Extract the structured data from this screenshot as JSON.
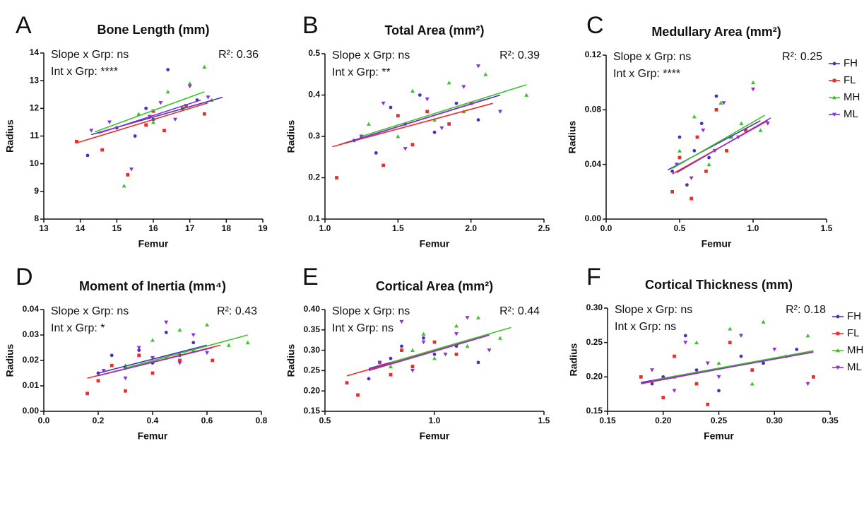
{
  "groups": [
    {
      "name": "FH",
      "color": "#4b2fbd",
      "marker": "circle"
    },
    {
      "name": "FL",
      "color": "#e8302b",
      "marker": "square"
    },
    {
      "name": "MH",
      "color": "#3cc42c",
      "marker": "triangle-up"
    },
    {
      "name": "ML",
      "color": "#8b2fd6",
      "marker": "triangle-down"
    }
  ],
  "chart_data": [
    {
      "type": "scatter",
      "panel": "A",
      "title": "Bone Length (mm)",
      "x_label": "Femur",
      "y_label": "Radius",
      "annotations": [
        "Slope x Grp: ns",
        "Int x Grp: ****",
        "R²: 0.36"
      ],
      "legend": false,
      "xlim": [
        13,
        19
      ],
      "xticks": [
        13,
        14,
        15,
        16,
        17,
        18,
        19
      ],
      "ylim": [
        8,
        14
      ],
      "yticks": [
        8,
        9,
        10,
        11,
        12,
        13,
        14
      ],
      "series": [
        {
          "x": [
            14.2,
            15.0,
            15.5,
            15.8,
            16.0,
            16.4,
            16.8,
            17.2
          ],
          "y": [
            10.3,
            11.3,
            11.0,
            12.0,
            11.6,
            13.4,
            12.0,
            12.3
          ],
          "fit_x": [
            14.3,
            17.9
          ],
          "fit_y": [
            11.05,
            12.4
          ]
        },
        {
          "x": [
            13.9,
            14.6,
            15.3,
            15.8,
            16.0,
            16.3,
            16.9,
            17.4
          ],
          "y": [
            10.8,
            10.5,
            9.6,
            11.4,
            11.9,
            11.2,
            12.1,
            11.8
          ],
          "fit_x": [
            13.9,
            17.5
          ],
          "fit_y": [
            10.75,
            12.2
          ]
        },
        {
          "x": [
            15.2,
            15.6,
            16.0,
            16.4,
            16.8,
            17.0,
            17.4,
            17.6
          ],
          "y": [
            9.2,
            11.8,
            11.5,
            12.6,
            12.0,
            12.9,
            13.5,
            12.3
          ],
          "fit_x": [
            14.4,
            17.4
          ],
          "fit_y": [
            11.15,
            12.6
          ]
        },
        {
          "x": [
            14.3,
            14.8,
            15.4,
            15.9,
            16.2,
            16.6,
            17.0,
            17.5
          ],
          "y": [
            11.2,
            11.5,
            9.8,
            11.7,
            12.2,
            11.6,
            12.8,
            12.4
          ],
          "fit_x": [
            14.5,
            17.3
          ],
          "fit_y": [
            11.1,
            12.3
          ]
        }
      ]
    },
    {
      "type": "scatter",
      "panel": "B",
      "title": "Total Area (mm²)",
      "x_label": "Femur",
      "y_label": "Radius",
      "annotations": [
        "Slope x Grp: ns",
        "Int x Grp: **",
        "R²: 0.39"
      ],
      "legend": false,
      "xlim": [
        1,
        2.5
      ],
      "xticks": [
        {
          "value": 1,
          "label": "1.0"
        },
        1.5,
        {
          "value": 2,
          "label": "2.0"
        },
        2.5
      ],
      "ylim": [
        0.1,
        0.5
      ],
      "yticks": [
        0.1,
        0.2,
        0.3,
        0.4,
        0.5
      ],
      "series": [
        {
          "x": [
            1.2,
            1.35,
            1.45,
            1.55,
            1.65,
            1.75,
            1.9,
            2.05
          ],
          "y": [
            0.29,
            0.26,
            0.37,
            0.33,
            0.4,
            0.31,
            0.38,
            0.34
          ],
          "fit_x": [
            1.1,
            2.2
          ],
          "fit_y": [
            0.28,
            0.4
          ]
        },
        {
          "x": [
            1.08,
            1.25,
            1.4,
            1.5,
            1.6,
            1.7,
            1.85,
            2.0
          ],
          "y": [
            0.2,
            0.3,
            0.23,
            0.35,
            0.28,
            0.36,
            0.33,
            0.38
          ],
          "fit_x": [
            1.05,
            2.15
          ],
          "fit_y": [
            0.275,
            0.38
          ]
        },
        {
          "x": [
            1.3,
            1.5,
            1.6,
            1.75,
            1.85,
            1.95,
            2.1,
            2.38
          ],
          "y": [
            0.33,
            0.3,
            0.41,
            0.34,
            0.43,
            0.36,
            0.45,
            0.4
          ],
          "fit_x": [
            1.25,
            2.38
          ],
          "fit_y": [
            0.3,
            0.425
          ]
        },
        {
          "x": [
            1.25,
            1.4,
            1.55,
            1.7,
            1.8,
            1.95,
            2.05,
            2.2
          ],
          "y": [
            0.3,
            0.38,
            0.27,
            0.39,
            0.32,
            0.42,
            0.47,
            0.36
          ],
          "fit_x": [
            1.2,
            2.1
          ],
          "fit_y": [
            0.29,
            0.39
          ]
        }
      ]
    },
    {
      "type": "scatter",
      "panel": "C",
      "title": "Medullary Area (mm²)",
      "x_label": "Femur",
      "y_label": "Radius",
      "annotations": [
        "Slope x Grp: ns",
        "Int x Grp: ****",
        "R²: 0.25"
      ],
      "legend": true,
      "xlim": [
        0,
        1.5
      ],
      "xticks": [
        {
          "value": 0,
          "label": "0.0"
        },
        0.5,
        {
          "value": 1,
          "label": "1.0"
        },
        1.5
      ],
      "ylim": [
        0,
        0.12
      ],
      "yticks": [
        {
          "value": 0,
          "label": "0.00"
        },
        0.04,
        0.08,
        0.12
      ],
      "series": [
        {
          "x": [
            0.45,
            0.5,
            0.55,
            0.6,
            0.65,
            0.7,
            0.75,
            0.85
          ],
          "y": [
            0.035,
            0.06,
            0.025,
            0.05,
            0.07,
            0.045,
            0.09,
            0.06
          ],
          "fit_x": [
            0.42,
            1.05
          ],
          "fit_y": [
            0.036,
            0.072
          ]
        },
        {
          "x": [
            0.45,
            0.5,
            0.58,
            0.62,
            0.68,
            0.75,
            0.82,
            0.95
          ],
          "y": [
            0.02,
            0.045,
            0.015,
            0.06,
            0.035,
            0.08,
            0.05,
            0.065
          ],
          "fit_x": [
            0.45,
            1.1
          ],
          "fit_y": [
            0.033,
            0.072
          ]
        },
        {
          "x": [
            0.5,
            0.6,
            0.7,
            0.78,
            0.85,
            0.92,
            1.0,
            1.05
          ],
          "y": [
            0.05,
            0.075,
            0.04,
            0.085,
            0.06,
            0.07,
            0.1,
            0.065
          ],
          "fit_x": [
            0.45,
            1.08
          ],
          "fit_y": [
            0.037,
            0.076
          ]
        },
        {
          "x": [
            0.48,
            0.58,
            0.66,
            0.74,
            0.8,
            0.9,
            1.0,
            1.1
          ],
          "y": [
            0.04,
            0.03,
            0.065,
            0.05,
            0.085,
            0.06,
            0.095,
            0.07
          ],
          "fit_x": [
            0.48,
            1.12
          ],
          "fit_y": [
            0.034,
            0.074
          ]
        }
      ]
    },
    {
      "type": "scatter",
      "panel": "D",
      "title": "Moment of Inertia (mm⁴)",
      "x_label": "Femur",
      "y_label": "Radius",
      "annotations": [
        "Slope x Grp: ns",
        "Int x Grp: *",
        "R²: 0.43"
      ],
      "legend": false,
      "xlim": [
        0,
        0.8
      ],
      "xticks": [
        {
          "value": 0,
          "label": "0.0"
        },
        0.2,
        0.4,
        0.6,
        0.8
      ],
      "ylim": [
        0,
        0.04
      ],
      "yticks": [
        {
          "value": 0,
          "label": "0.00"
        },
        0.01,
        0.02,
        0.03,
        0.04
      ],
      "series": [
        {
          "x": [
            0.2,
            0.25,
            0.3,
            0.35,
            0.4,
            0.45,
            0.5,
            0.55
          ],
          "y": [
            0.015,
            0.022,
            0.017,
            0.024,
            0.019,
            0.031,
            0.022,
            0.027
          ],
          "fit_x": [
            0.2,
            0.6
          ],
          "fit_y": [
            0.015,
            0.026
          ]
        },
        {
          "x": [
            0.16,
            0.2,
            0.25,
            0.3,
            0.35,
            0.4,
            0.5,
            0.62
          ],
          "y": [
            0.007,
            0.012,
            0.018,
            0.008,
            0.022,
            0.015,
            0.02,
            0.02
          ],
          "fit_x": [
            0.16,
            0.65
          ],
          "fit_y": [
            0.013,
            0.026
          ]
        },
        {
          "x": [
            0.3,
            0.4,
            0.45,
            0.5,
            0.55,
            0.6,
            0.68,
            0.75
          ],
          "y": [
            0.018,
            0.028,
            0.021,
            0.032,
            0.024,
            0.034,
            0.026,
            0.027
          ],
          "fit_x": [
            0.3,
            0.75
          ],
          "fit_y": [
            0.017,
            0.03
          ]
        },
        {
          "x": [
            0.22,
            0.3,
            0.35,
            0.4,
            0.45,
            0.5,
            0.55,
            0.6
          ],
          "y": [
            0.016,
            0.013,
            0.025,
            0.021,
            0.035,
            0.019,
            0.03,
            0.023
          ],
          "fit_x": [
            0.2,
            0.62
          ],
          "fit_y": [
            0.014,
            0.025
          ]
        }
      ]
    },
    {
      "type": "scatter",
      "panel": "E",
      "title": "Cortical Area (mm²)",
      "x_label": "Femur",
      "y_label": "Radius",
      "annotations": [
        "Slope x Grp: ns",
        "Int x Grp: ns",
        "R²: 0.44"
      ],
      "legend": false,
      "xlim": [
        0.5,
        1.5
      ],
      "xticks": [
        0.5,
        {
          "value": 1,
          "label": "1.0"
        },
        1.5
      ],
      "ylim": [
        0.15,
        0.4
      ],
      "yticks": [
        0.15,
        {
          "value": 0.2,
          "label": "0.20"
        },
        0.25,
        {
          "value": 0.3,
          "label": "0.30"
        },
        0.35,
        {
          "value": 0.4,
          "label": "0.40"
        }
      ],
      "series": [
        {
          "x": [
            0.7,
            0.8,
            0.85,
            0.9,
            0.95,
            1.0,
            1.1,
            1.2
          ],
          "y": [
            0.23,
            0.28,
            0.31,
            0.26,
            0.33,
            0.29,
            0.31,
            0.27
          ],
          "fit_x": [
            0.7,
            1.2
          ],
          "fit_y": [
            0.255,
            0.33
          ]
        },
        {
          "x": [
            0.6,
            0.65,
            0.75,
            0.8,
            0.85,
            0.9,
            1.0,
            1.1
          ],
          "y": [
            0.22,
            0.19,
            0.27,
            0.24,
            0.3,
            0.26,
            0.32,
            0.29
          ],
          "fit_x": [
            0.6,
            1.25
          ],
          "fit_y": [
            0.237,
            0.338
          ]
        },
        {
          "x": [
            0.8,
            0.9,
            0.95,
            1.0,
            1.1,
            1.15,
            1.2,
            1.3
          ],
          "y": [
            0.26,
            0.3,
            0.34,
            0.28,
            0.36,
            0.31,
            0.38,
            0.33
          ],
          "fit_x": [
            0.8,
            1.35
          ],
          "fit_y": [
            0.27,
            0.356
          ]
        },
        {
          "x": [
            0.75,
            0.85,
            0.9,
            0.95,
            1.05,
            1.1,
            1.15,
            1.25
          ],
          "y": [
            0.27,
            0.37,
            0.25,
            0.32,
            0.29,
            0.34,
            0.38,
            0.3
          ],
          "fit_x": [
            0.7,
            1.25
          ],
          "fit_y": [
            0.25,
            0.337
          ]
        }
      ]
    },
    {
      "type": "scatter",
      "panel": "F",
      "title": "Cortical Thickness (mm)",
      "x_label": "Femur",
      "y_label": "Radius",
      "annotations": [
        "Slope x Grp: ns",
        "Int x Grp: ns",
        "R²: 0.18"
      ],
      "legend": true,
      "xlim": [
        0.15,
        0.35
      ],
      "xticks": [
        0.15,
        {
          "value": 0.2,
          "label": "0.20"
        },
        0.25,
        {
          "value": 0.3,
          "label": "0.30"
        },
        0.35
      ],
      "ylim": [
        0.15,
        0.3
      ],
      "yticks": [
        0.15,
        {
          "value": 0.2,
          "label": "0.20"
        },
        0.25,
        {
          "value": 0.3,
          "label": "0.30"
        }
      ],
      "series": [
        {
          "x": [
            0.19,
            0.2,
            0.22,
            0.23,
            0.25,
            0.27,
            0.29,
            0.32
          ],
          "y": [
            0.19,
            0.2,
            0.26,
            0.21,
            0.18,
            0.23,
            0.22,
            0.24
          ],
          "fit_x": [
            0.18,
            0.32
          ],
          "fit_y": [
            0.192,
            0.232
          ]
        },
        {
          "x": [
            0.18,
            0.2,
            0.21,
            0.23,
            0.24,
            0.26,
            0.28,
            0.335
          ],
          "y": [
            0.2,
            0.17,
            0.23,
            0.19,
            0.16,
            0.25,
            0.21,
            0.2
          ],
          "fit_x": [
            0.18,
            0.335
          ],
          "fit_y": [
            0.19,
            0.237
          ]
        },
        {
          "x": [
            0.21,
            0.23,
            0.25,
            0.26,
            0.28,
            0.29,
            0.31,
            0.33
          ],
          "y": [
            0.2,
            0.25,
            0.22,
            0.27,
            0.19,
            0.28,
            0.23,
            0.26
          ],
          "fit_x": [
            0.19,
            0.335
          ],
          "fit_y": [
            0.195,
            0.238
          ]
        },
        {
          "x": [
            0.19,
            0.21,
            0.22,
            0.24,
            0.25,
            0.27,
            0.3,
            0.33
          ],
          "y": [
            0.21,
            0.18,
            0.25,
            0.22,
            0.2,
            0.26,
            0.24,
            0.19
          ],
          "fit_x": [
            0.18,
            0.335
          ],
          "fit_y": [
            0.191,
            0.236
          ]
        }
      ]
    }
  ]
}
